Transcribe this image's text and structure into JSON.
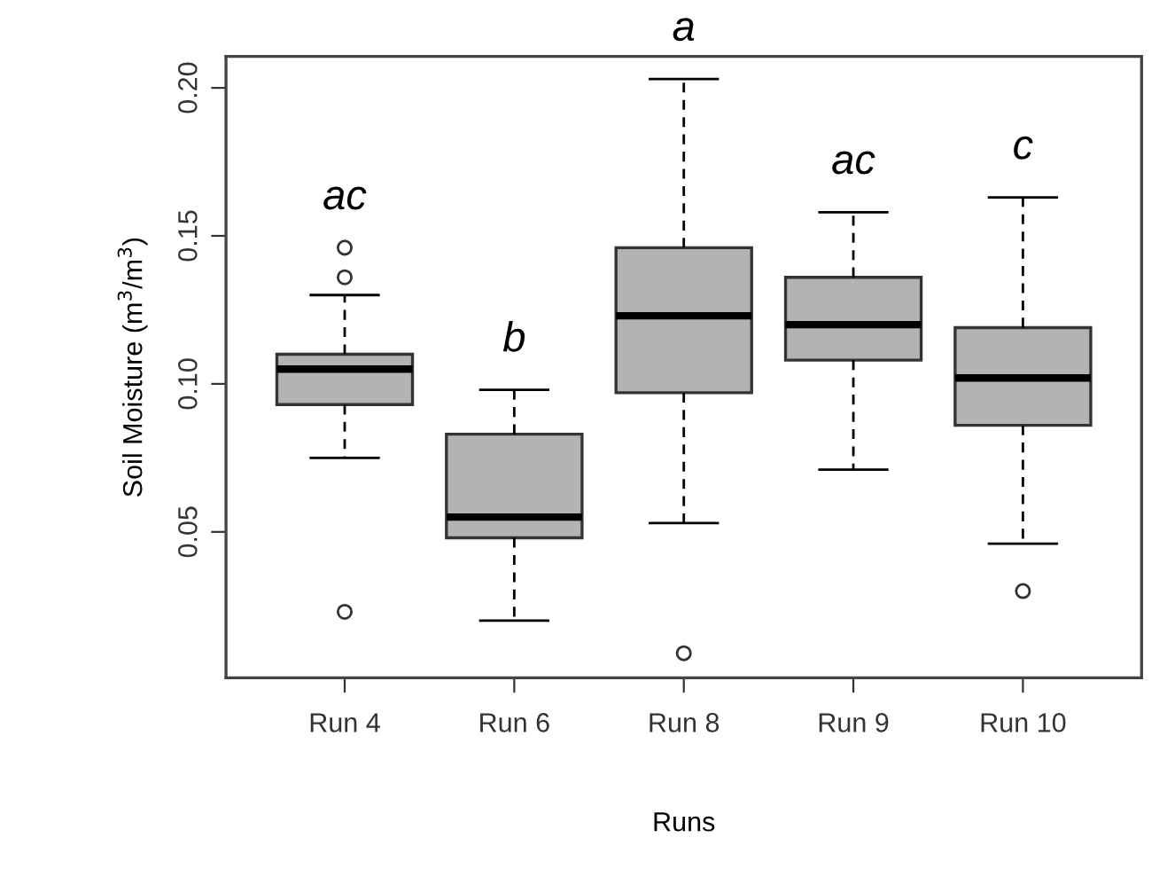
{
  "chart_data": {
    "type": "box",
    "xlabel": "Runs",
    "ylabel": "Soil Moisture (m$^{3}$/m$^{3}$)",
    "categories": [
      "Run 4",
      "Run 6",
      "Run 8",
      "Run 9",
      "Run 10"
    ],
    "series": [
      {
        "color": "#b3b3b3",
        "boxes": [
          {
            "low": 0.075,
            "q1": 0.093,
            "median": 0.105,
            "q3": 0.11,
            "high": 0.13,
            "outliers": [
              0.146,
              0.136,
              0.023
            ]
          },
          {
            "low": 0.02,
            "q1": 0.048,
            "median": 0.055,
            "q3": 0.083,
            "high": 0.098
          },
          {
            "low": 0.053,
            "q1": 0.097,
            "median": 0.123,
            "q3": 0.146,
            "high": 0.203,
            "outliers": [
              0.009
            ]
          },
          {
            "low": 0.071,
            "q1": 0.108,
            "median": 0.12,
            "q3": 0.136,
            "high": 0.158
          },
          {
            "low": 0.046,
            "q1": 0.086,
            "median": 0.102,
            "q3": 0.119,
            "high": 0.163,
            "outliers": [
              0.03
            ]
          }
        ]
      }
    ],
    "ylim": [
      0.0007,
      0.2106
    ],
    "yticks": [
      0.05,
      {
        "value": 0.1,
        "label": "0.10"
      },
      0.15,
      {
        "value": 0.2,
        "label": "0.20"
      }
    ],
    "annotations": [
      "ac",
      "b",
      "a",
      "ac",
      "c"
    ],
    "grid": false,
    "legend": false
  }
}
